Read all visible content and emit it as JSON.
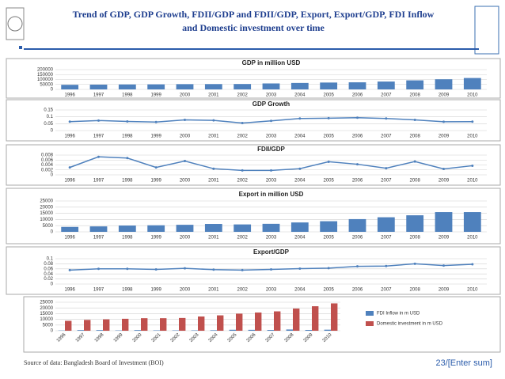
{
  "header": {
    "title": "Trend of GDP, GDP Growth, FDII/GDP and FDII/GDP, Export, Export/GDP, FDI Inflow and Domestic investment over time"
  },
  "footer": {
    "source": "Source of data: Bangladesh Board of Investment (BOI)",
    "page": "23/[Enter sum]"
  },
  "chart_data": [
    {
      "type": "bar",
      "title": "GDP in million USD",
      "color": "#4f81bd",
      "grid": true,
      "categories": [
        "1996",
        "1997",
        "1998",
        "1999",
        "2000",
        "2001",
        "2002",
        "2003",
        "2004",
        "2005",
        "2006",
        "2007",
        "2008",
        "2009",
        "2010"
      ],
      "values": [
        46400,
        48200,
        50200,
        51300,
        53400,
        54000,
        54700,
        60200,
        65100,
        69400,
        71800,
        79600,
        91600,
        102500,
        115300
      ],
      "ylim": [
        0,
        200000
      ],
      "yticks": [
        0,
        50000,
        100000,
        150000,
        200000
      ]
    },
    {
      "type": "line",
      "title": "GDP Growth",
      "color": "#4f81bd",
      "grid": true,
      "categories": [
        "1996",
        "1997",
        "1998",
        "1999",
        "2000",
        "2001",
        "2002",
        "2003",
        "2004",
        "2005",
        "2006",
        "2007",
        "2008",
        "2009",
        "2010"
      ],
      "values": [
        0.065,
        0.073,
        0.066,
        0.062,
        0.078,
        0.074,
        0.055,
        0.071,
        0.088,
        0.09,
        0.094,
        0.088,
        0.078,
        0.064,
        0.065
      ],
      "ylim": [
        0,
        0.15
      ],
      "yticks": [
        0,
        0.05,
        0.1,
        0.15
      ]
    },
    {
      "type": "line",
      "title": "FDII/GDP",
      "color": "#4f81bd",
      "grid": true,
      "categories": [
        "1996",
        "1997",
        "1998",
        "1999",
        "2000",
        "2001",
        "2002",
        "2003",
        "2004",
        "2005",
        "2006",
        "2007",
        "2008",
        "2009",
        "2010"
      ],
      "values": [
        0.003,
        0.0073,
        0.0068,
        0.003,
        0.0056,
        0.0025,
        0.0018,
        0.0018,
        0.0025,
        0.0053,
        0.0043,
        0.0027,
        0.0054,
        0.0024,
        0.0037
      ],
      "ylim": [
        0,
        0.008
      ],
      "yticks": [
        0,
        0.002,
        0.004,
        0.006,
        0.008
      ]
    },
    {
      "type": "bar",
      "title": "Export in million USD",
      "color": "#4f81bd",
      "grid": true,
      "categories": [
        "1996",
        "1997",
        "1998",
        "1999",
        "2000",
        "2001",
        "2002",
        "2003",
        "2004",
        "2005",
        "2006",
        "2007",
        "2008",
        "2009",
        "2010"
      ],
      "values": [
        4000,
        4400,
        5100,
        5300,
        5700,
        6400,
        6000,
        6500,
        7600,
        8600,
        10300,
        11800,
        13400,
        16000,
        16000
      ],
      "ylim": [
        0,
        25000
      ],
      "yticks": [
        0,
        5000,
        10000,
        15000,
        20000,
        25000
      ]
    },
    {
      "type": "line",
      "title": "Export/GDP",
      "color": "#4f81bd",
      "grid": true,
      "categories": [
        "1996",
        "1997",
        "1998",
        "1999",
        "2000",
        "2001",
        "2002",
        "2003",
        "2004",
        "2005",
        "2006",
        "2007",
        "2008",
        "2009",
        "2010"
      ],
      "values": [
        0.055,
        0.06,
        0.06,
        0.058,
        0.062,
        0.057,
        0.055,
        0.058,
        0.061,
        0.063,
        0.07,
        0.071,
        0.08,
        0.073,
        0.078
      ],
      "ylim": [
        0,
        0.1
      ],
      "yticks": [
        0,
        0.02,
        0.04,
        0.06,
        0.08,
        0.1
      ]
    },
    {
      "type": "grouped_bar",
      "grid": true,
      "categories": [
        "1996",
        "1997",
        "1998",
        "1999",
        "2000",
        "2001",
        "2002",
        "2003",
        "2004",
        "2005",
        "2006",
        "2007",
        "2008",
        "2009",
        "2010"
      ],
      "series": [
        {
          "name": "FDI Inflow in m USD",
          "color": "#4f81bd",
          "values": [
            230,
            575,
            576,
            309,
            579,
            355,
            328,
            350,
            460,
            845,
            792,
            666,
            1086,
            700,
            913
          ]
        },
        {
          "name": "Domestic investment in m USD",
          "color": "#c0504d",
          "values": [
            8700,
            9500,
            10000,
            10500,
            11000,
            11000,
            11200,
            12500,
            13500,
            15000,
            16000,
            17000,
            19500,
            21500,
            24000
          ]
        }
      ],
      "ylim": [
        0,
        25000
      ],
      "yticks": [
        0,
        5000,
        10000,
        15000,
        20000,
        25000
      ]
    }
  ]
}
